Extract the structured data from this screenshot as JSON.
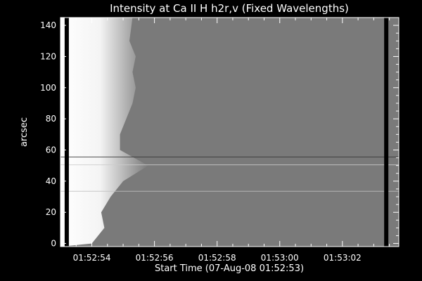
{
  "chart_data": {
    "type": "heatmap",
    "title": "Intensity at Ca II H h2r,v (Fixed Wavelengths)",
    "xlabel": "Start Time (07-Aug-08 01:52:53)",
    "ylabel": "arcsec",
    "x_ticks": [
      "01:52:54",
      "01:52:56",
      "01:52:58",
      "01:53:00",
      "01:53:02"
    ],
    "x_tick_seconds": [
      54,
      56,
      58,
      60,
      62
    ],
    "xlim_seconds": [
      53.0,
      63.8
    ],
    "y_ticks": [
      0,
      20,
      40,
      60,
      80,
      100,
      120,
      140
    ],
    "ylim": [
      -2,
      145
    ],
    "colormap": "grayscale",
    "background_level": 0.48,
    "bright_region_end_seconds": [
      {
        "y": 0,
        "x": 54.0
      },
      {
        "y": 10,
        "x": 54.4
      },
      {
        "y": 20,
        "x": 54.3
      },
      {
        "y": 30,
        "x": 54.6
      },
      {
        "y": 40,
        "x": 55.0
      },
      {
        "y": 50,
        "x": 55.8
      },
      {
        "y": 60,
        "x": 54.9
      },
      {
        "y": 70,
        "x": 54.9
      },
      {
        "y": 80,
        "x": 55.1
      },
      {
        "y": 90,
        "x": 55.3
      },
      {
        "y": 100,
        "x": 55.4
      },
      {
        "y": 110,
        "x": 55.3
      },
      {
        "y": 120,
        "x": 55.4
      },
      {
        "y": 130,
        "x": 55.2
      },
      {
        "y": 145,
        "x": 55.3
      }
    ],
    "horizontal_features_arcsec": [
      {
        "y": 55.5,
        "level": 0.2
      },
      {
        "y": 50.5,
        "level": 0.8
      },
      {
        "y": 33.5,
        "level": 0.75
      }
    ],
    "dark_columns_seconds": [
      53.2,
      63.4
    ],
    "grid": false,
    "legend": "none"
  },
  "colors": {
    "background": "#000000",
    "axes": "#ffffff",
    "text": "#ffffff"
  }
}
